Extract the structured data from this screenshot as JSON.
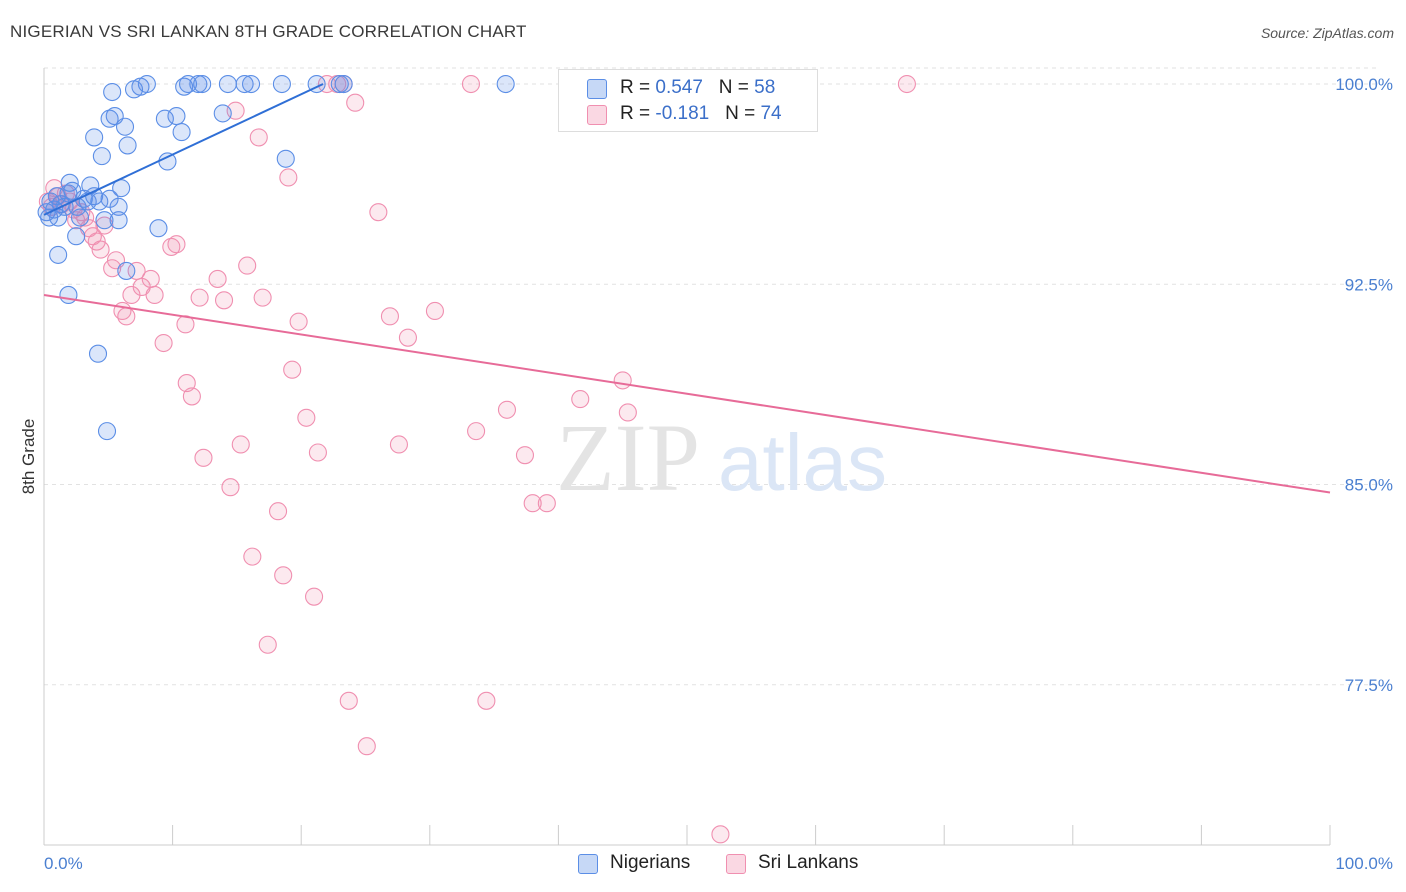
{
  "header": {
    "title": "NIGERIAN VS SRI LANKAN 8TH GRADE CORRELATION CHART",
    "source": "Source: ZipAtlas.com"
  },
  "watermark": {
    "zip": "ZIP",
    "atlas": "atlas"
  },
  "legend": {
    "rows": [
      {
        "r_label": "R = ",
        "r_value": "0.547",
        "n_label": "N = ",
        "n_value": "58",
        "color": "#5b8ee6"
      },
      {
        "r_label": "R = ",
        "r_value": "-0.181",
        "n_label": "N = ",
        "n_value": "74",
        "color": "#f08fb0"
      }
    ]
  },
  "bottom_legend": [
    "Nigerians",
    "Sri Lankans"
  ],
  "chart_data": {
    "type": "scatter",
    "title": "NIGERIAN VS SRI LANKAN 8TH GRADE CORRELATION CHART",
    "xlabel": "",
    "ylabel": "8th Grade",
    "xlim": [
      0,
      100
    ],
    "ylim": [
      71.5,
      100.6
    ],
    "x_tick_labels": [
      "0.0%",
      "100.0%"
    ],
    "y_ticks": [
      100.0,
      92.5,
      85.0,
      77.5
    ],
    "y_tick_labels": [
      "100.0%",
      "92.5%",
      "85.0%",
      "77.5%"
    ],
    "grid": "horizontal dashed",
    "legend_placement": "top-center",
    "series": [
      {
        "name": "Nigerians",
        "color": "#5b8ee6",
        "trend": {
          "x": [
            0,
            21.7
          ],
          "y": [
            95.1,
            100.0
          ]
        },
        "points": [
          [
            0.2,
            95.2
          ],
          [
            0.5,
            95.6
          ],
          [
            0.8,
            95.3
          ],
          [
            1.0,
            95.8
          ],
          [
            1.3,
            95.5
          ],
          [
            1.6,
            95.4
          ],
          [
            1.9,
            95.9
          ],
          [
            2.2,
            96.0
          ],
          [
            0.4,
            95.0
          ],
          [
            1.1,
            93.6
          ],
          [
            2.0,
            96.3
          ],
          [
            2.5,
            94.3
          ],
          [
            2.8,
            95.0
          ],
          [
            3.1,
            95.7
          ],
          [
            3.4,
            95.6
          ],
          [
            3.6,
            96.2
          ],
          [
            3.9,
            95.8
          ],
          [
            4.3,
            95.6
          ],
          [
            4.5,
            97.3
          ],
          [
            4.7,
            94.9
          ],
          [
            5.1,
            95.7
          ],
          [
            5.3,
            99.7
          ],
          [
            5.5,
            98.8
          ],
          [
            5.8,
            95.4
          ],
          [
            6.0,
            96.1
          ],
          [
            6.3,
            98.4
          ],
          [
            6.5,
            97.7
          ],
          [
            7.0,
            99.8
          ],
          [
            7.5,
            99.9
          ],
          [
            8.0,
            100.0
          ],
          [
            1.1,
            95.0
          ],
          [
            1.9,
            92.1
          ],
          [
            4.2,
            89.9
          ],
          [
            6.4,
            93.0
          ],
          [
            4.9,
            87.0
          ],
          [
            3.9,
            98.0
          ],
          [
            5.1,
            98.7
          ],
          [
            8.9,
            94.6
          ],
          [
            9.4,
            98.7
          ],
          [
            9.6,
            97.1
          ],
          [
            10.3,
            98.8
          ],
          [
            10.7,
            98.2
          ],
          [
            10.9,
            99.9
          ],
          [
            11.2,
            100.0
          ],
          [
            12.0,
            100.0
          ],
          [
            12.3,
            100.0
          ],
          [
            13.9,
            98.9
          ],
          [
            14.3,
            100.0
          ],
          [
            15.6,
            100.0
          ],
          [
            16.1,
            100.0
          ],
          [
            18.5,
            100.0
          ],
          [
            18.8,
            97.2
          ],
          [
            21.2,
            100.0
          ],
          [
            23.0,
            100.0
          ],
          [
            23.3,
            100.0
          ],
          [
            35.9,
            100.0
          ],
          [
            5.8,
            94.9
          ],
          [
            2.6,
            95.4
          ]
        ]
      },
      {
        "name": "Sri Lankans",
        "color": "#f08fb0",
        "trend": {
          "x": [
            0,
            100
          ],
          "y": [
            92.1,
            84.7
          ]
        },
        "points": [
          [
            0.3,
            95.6
          ],
          [
            0.6,
            95.4
          ],
          [
            0.8,
            96.1
          ],
          [
            1.1,
            95.8
          ],
          [
            1.4,
            95.5
          ],
          [
            1.7,
            95.9
          ],
          [
            2.0,
            95.6
          ],
          [
            2.3,
            95.3
          ],
          [
            2.5,
            94.9
          ],
          [
            2.9,
            95.2
          ],
          [
            3.2,
            95.0
          ],
          [
            3.5,
            94.6
          ],
          [
            3.8,
            94.3
          ],
          [
            4.1,
            94.1
          ],
          [
            4.4,
            93.8
          ],
          [
            4.7,
            94.7
          ],
          [
            5.3,
            93.1
          ],
          [
            5.6,
            93.4
          ],
          [
            6.1,
            91.5
          ],
          [
            6.4,
            91.3
          ],
          [
            6.8,
            92.1
          ],
          [
            7.2,
            93.0
          ],
          [
            7.6,
            92.4
          ],
          [
            8.3,
            92.7
          ],
          [
            8.6,
            92.1
          ],
          [
            9.3,
            90.3
          ],
          [
            9.9,
            93.9
          ],
          [
            10.3,
            94.0
          ],
          [
            11.0,
            91.0
          ],
          [
            11.1,
            88.8
          ],
          [
            11.5,
            88.3
          ],
          [
            12.1,
            92.0
          ],
          [
            12.4,
            86.0
          ],
          [
            13.5,
            92.7
          ],
          [
            14.0,
            91.9
          ],
          [
            14.5,
            84.9
          ],
          [
            14.9,
            99.0
          ],
          [
            15.3,
            86.5
          ],
          [
            15.8,
            93.2
          ],
          [
            16.2,
            82.3
          ],
          [
            16.7,
            98.0
          ],
          [
            17.0,
            92.0
          ],
          [
            17.4,
            79.0
          ],
          [
            18.2,
            84.0
          ],
          [
            18.6,
            81.6
          ],
          [
            19.0,
            96.5
          ],
          [
            19.3,
            89.3
          ],
          [
            19.8,
            91.1
          ],
          [
            20.4,
            87.5
          ],
          [
            21.0,
            80.8
          ],
          [
            21.3,
            86.2
          ],
          [
            22.0,
            100.0
          ],
          [
            22.8,
            100.0
          ],
          [
            23.3,
            100.0
          ],
          [
            23.7,
            76.9
          ],
          [
            24.2,
            99.3
          ],
          [
            25.1,
            75.2
          ],
          [
            26.0,
            95.2
          ],
          [
            26.9,
            91.3
          ],
          [
            27.6,
            86.5
          ],
          [
            28.3,
            90.5
          ],
          [
            30.4,
            91.5
          ],
          [
            33.2,
            100.0
          ],
          [
            33.6,
            87.0
          ],
          [
            34.4,
            76.9
          ],
          [
            36.0,
            87.8
          ],
          [
            37.4,
            86.1
          ],
          [
            38.0,
            84.3
          ],
          [
            39.1,
            84.3
          ],
          [
            41.7,
            88.2
          ],
          [
            45.0,
            88.9
          ],
          [
            45.4,
            87.7
          ],
          [
            52.6,
            71.9
          ],
          [
            67.1,
            100.0
          ]
        ]
      }
    ]
  }
}
